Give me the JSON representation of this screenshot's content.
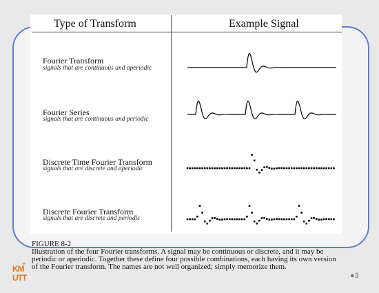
{
  "figure": {
    "col_type_header": "Type of Transform",
    "col_signal_header": "Example Signal",
    "rows": [
      {
        "title": "Fourier Transform",
        "subtitle": "signals that are continuous and aperiodic"
      },
      {
        "title": "Fourier Series",
        "subtitle": "signals that are continuous and periodic"
      },
      {
        "title": "Discrete Time Fourier Transform",
        "subtitle": "signals that are discrete and aperiodic"
      },
      {
        "title": "Discrete Fourier Transform",
        "subtitle": "signals that are discrete and periodic"
      }
    ],
    "caption_heading": "FIGURE 8-2",
    "caption_text": "Illustration of the four Fourier transforms.  A signal may be continuous or discrete, and it may be periodic or aperiodic. Together these define four possible combinations, each having its own version of the Fourier transform. The names are not well organized; simply memorize them."
  },
  "logo": {
    "line1": "KM",
    "line2": "UTT",
    "mark": "+"
  },
  "page_number": "●3",
  "colors": {
    "frame": "#5b7fd0",
    "logo": "#e07a1f"
  }
}
